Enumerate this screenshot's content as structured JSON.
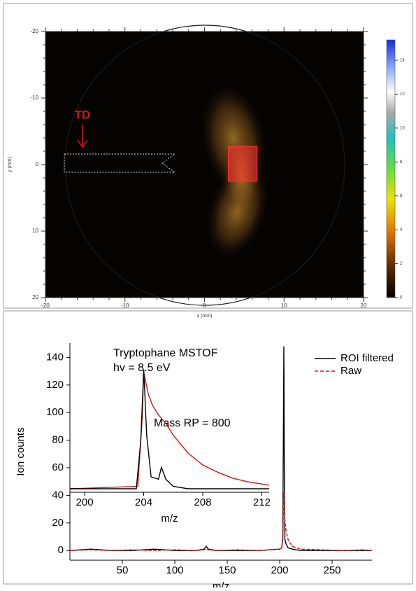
{
  "chart_data": [
    {
      "type": "image",
      "xlabel": "x (mm)",
      "ylabel": "y (mm)",
      "xlim": [
        -20,
        20
      ],
      "ylim": [
        -20,
        20
      ],
      "xticks": [
        -20,
        -10,
        0,
        10,
        20
      ],
      "yticks": [
        -20,
        -10,
        0,
        10,
        20
      ],
      "clim": [
        0,
        15.2
      ],
      "cticks": [
        0,
        2,
        4,
        6,
        8,
        10,
        12,
        14
      ],
      "annotation": "TD",
      "roi": {
        "x": [
          3.0,
          6.6
        ],
        "y": [
          -2.7,
          2.5
        ],
        "color": "#ff3030"
      }
    },
    {
      "type": "line",
      "ylabel": "Ion counts",
      "xlabel": "m/z",
      "xlim": [
        0,
        288
      ],
      "ylim": [
        -7,
        150
      ],
      "xticks": [
        50,
        100,
        150,
        200,
        250
      ],
      "yticks": [
        0,
        20,
        40,
        60,
        80,
        100,
        120,
        140
      ],
      "legend": "upper right",
      "x": [
        0,
        20,
        40,
        60,
        80,
        100,
        120,
        128,
        130,
        132,
        140,
        160,
        180,
        200,
        202,
        203,
        204,
        204.5,
        205,
        206,
        208,
        212,
        220,
        240,
        260,
        280,
        288
      ],
      "series": [
        {
          "name": "ROI filtered",
          "color": "#000000",
          "linestyle": "solid",
          "values": [
            0,
            1,
            0,
            0,
            1,
            0,
            0,
            1,
            3,
            1,
            0,
            0,
            0,
            1,
            2,
            10,
            148,
            40,
            8,
            5,
            2,
            1,
            0,
            0,
            0,
            0,
            0
          ]
        },
        {
          "name": "Raw",
          "color": "#e01010",
          "linestyle": "dashed",
          "values": [
            0,
            0.5,
            0,
            0.5,
            0,
            0.5,
            0,
            0.5,
            1,
            0.5,
            0,
            0.5,
            0,
            1,
            2,
            8,
            42,
            30,
            22,
            15,
            8,
            3,
            1,
            0.5,
            0,
            0.5,
            0
          ]
        }
      ]
    },
    {
      "type": "line",
      "annotations": [
        "Tryptophane MSTOF",
        "hv = 8.5 eV",
        "Mass RP = 800"
      ],
      "xlabel": "m/z",
      "xlim": [
        199,
        212.5
      ],
      "ylim": [
        0,
        100
      ],
      "xticks": [
        200,
        204,
        208,
        212
      ],
      "series": [
        {
          "color": "#e01010",
          "x": [
            199,
            203.6,
            203.9,
            204,
            204.3,
            204.6,
            205,
            205.5,
            206,
            207,
            208,
            209,
            210,
            211,
            212,
            212.5
          ],
          "values": [
            0,
            2,
            60,
            98,
            80,
            70,
            62,
            55,
            45,
            30,
            20,
            14,
            9,
            6,
            4,
            3
          ]
        },
        {
          "color": "#000000",
          "x": [
            199,
            203.5,
            203.8,
            204,
            204.2,
            204.5,
            205,
            205.2,
            205.5,
            206,
            207,
            212.5
          ],
          "values": [
            0,
            0,
            40,
            100,
            45,
            10,
            8,
            18,
            8,
            2,
            0,
            0
          ]
        }
      ]
    }
  ]
}
